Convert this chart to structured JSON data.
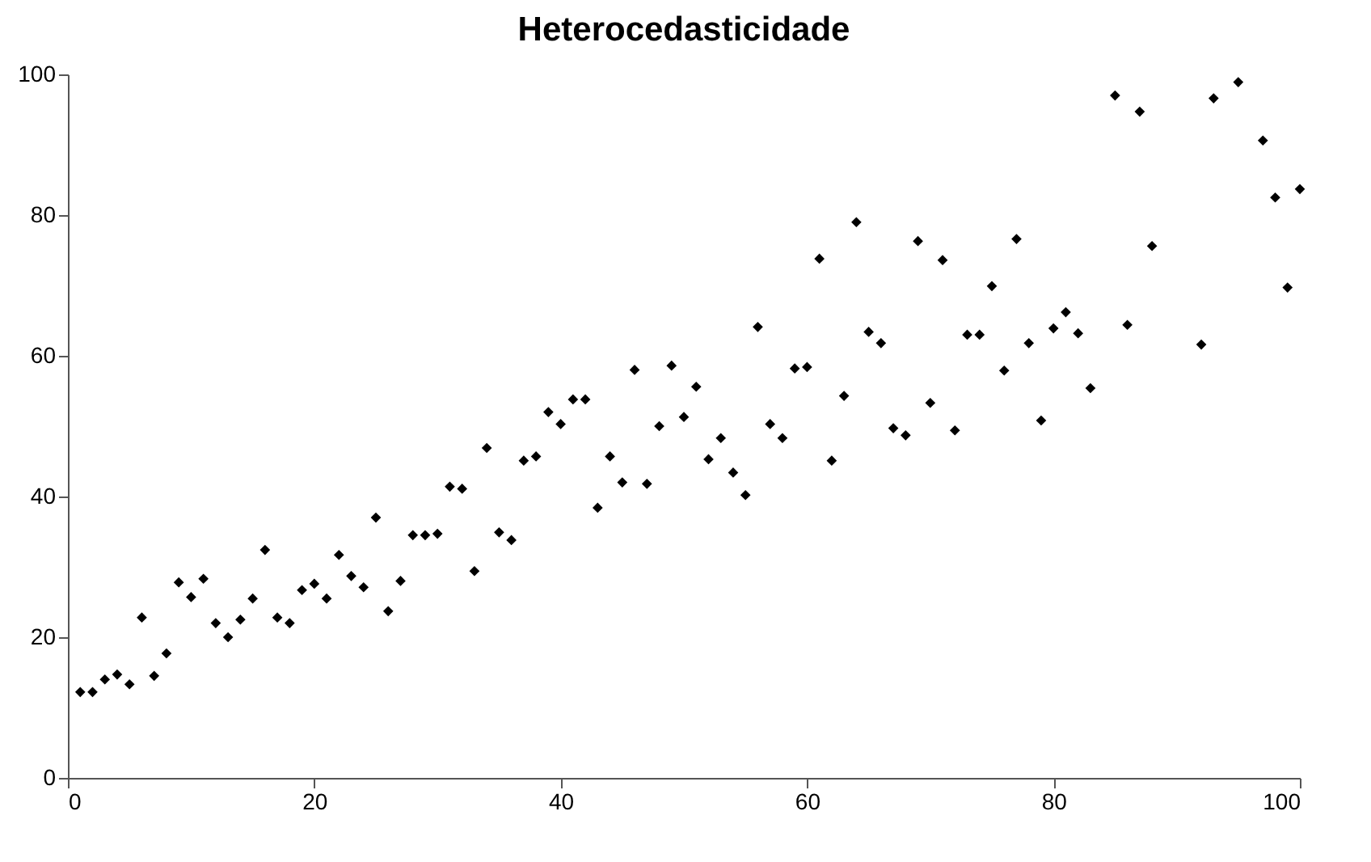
{
  "chart_data": {
    "type": "scatter",
    "title": "Heterocedasticidade",
    "x": [
      1,
      2,
      3,
      4,
      5,
      6,
      7,
      8,
      9,
      10,
      11,
      12,
      13,
      14,
      15,
      16,
      17,
      18,
      19,
      20,
      21,
      22,
      23,
      24,
      25,
      26,
      27,
      28,
      29,
      30,
      31,
      32,
      33,
      34,
      35,
      36,
      37,
      38,
      39,
      40,
      41,
      42,
      43,
      44,
      45,
      46,
      47,
      48,
      49,
      50,
      51,
      52,
      53,
      54,
      55,
      56,
      57,
      58,
      59,
      60,
      61,
      62,
      63,
      64,
      65,
      66,
      67,
      68,
      69,
      70,
      71,
      72,
      73,
      74,
      75,
      76,
      77,
      78,
      79,
      80,
      81,
      82,
      83,
      85,
      86,
      87,
      88,
      92,
      93,
      95,
      97,
      98,
      99,
      100
    ],
    "series": [
      {
        "color": "#000000",
        "values": [
          12.2,
          12.2,
          14,
          14.7,
          13.3,
          22.8,
          14.5,
          17.7,
          27.8,
          25.7,
          28.3,
          22,
          20,
          22.5,
          25.5,
          32.4,
          22.8,
          22,
          26.7,
          27.6,
          25.5,
          31.7,
          28.7,
          27.1,
          37,
          23.7,
          28,
          34.5,
          34.5,
          34.7,
          41.4,
          41.1,
          29.4,
          46.9,
          34.9,
          33.8,
          45.1,
          45.7,
          52,
          50.3,
          53.8,
          53.8,
          38.4,
          45.7,
          42,
          58,
          41.8,
          50,
          58.6,
          51.3,
          55.6,
          45.3,
          48.3,
          43.4,
          40.2,
          64.1,
          50.3,
          48.3,
          58.2,
          58.4,
          73.8,
          45.1,
          54.3,
          79,
          63.4,
          61.8,
          49.7,
          48.7,
          76.3,
          53.3,
          73.6,
          49.4,
          63,
          63,
          69.9,
          57.9,
          76.6,
          61.8,
          50.8,
          63.9,
          66.2,
          63.2,
          55.4,
          97,
          64.4,
          94.7,
          75.6,
          61.6,
          96.6,
          98.9,
          90.6,
          82.5,
          69.7,
          83.7
        ]
      }
    ],
    "xlim": [
      0,
      100
    ],
    "xticks": [
      0,
      20,
      40,
      60,
      80,
      100
    ],
    "ylim": [
      0,
      100
    ],
    "yticks": [
      0,
      20,
      40,
      60,
      80,
      100
    ],
    "grid": false,
    "marker": "diamond"
  }
}
